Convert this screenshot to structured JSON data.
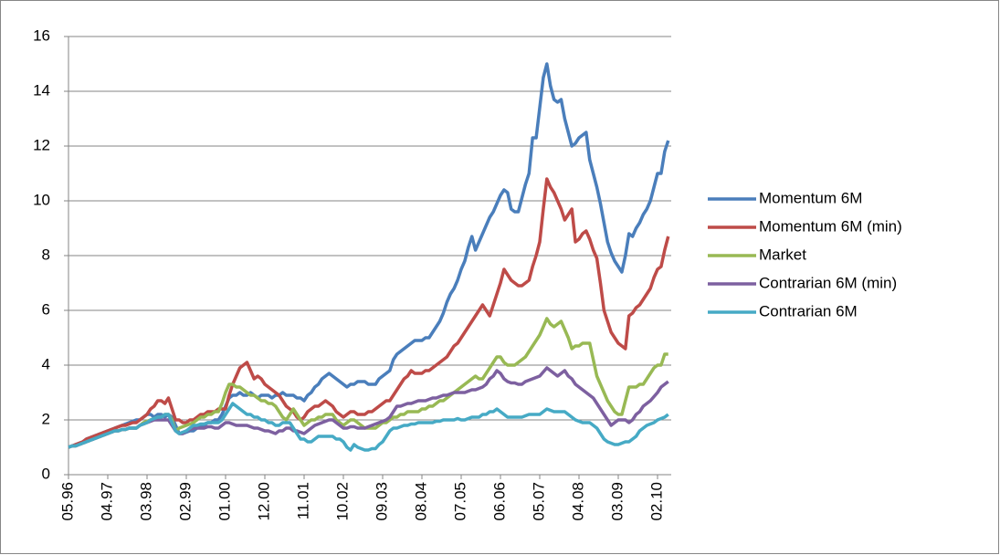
{
  "chart_data": {
    "type": "line",
    "categories": [
      "05.96",
      null,
      null,
      null,
      null,
      null,
      null,
      null,
      null,
      null,
      null,
      "04.97",
      null,
      null,
      null,
      null,
      null,
      null,
      null,
      null,
      null,
      null,
      "03.98",
      null,
      null,
      null,
      null,
      null,
      null,
      null,
      null,
      null,
      null,
      "02.99",
      null,
      null,
      null,
      null,
      null,
      null,
      null,
      null,
      null,
      null,
      "01.00",
      null,
      null,
      null,
      null,
      null,
      null,
      null,
      null,
      null,
      null,
      "12.00",
      null,
      null,
      null,
      null,
      null,
      null,
      null,
      null,
      null,
      null,
      "11.01",
      null,
      null,
      null,
      null,
      null,
      null,
      null,
      null,
      null,
      null,
      "10.02",
      null,
      null,
      null,
      null,
      null,
      null,
      null,
      null,
      null,
      null,
      "09.03",
      null,
      null,
      null,
      null,
      null,
      null,
      null,
      null,
      null,
      null,
      "08.04",
      null,
      null,
      null,
      null,
      null,
      null,
      null,
      null,
      null,
      null,
      "07.05",
      null,
      null,
      null,
      null,
      null,
      null,
      null,
      null,
      null,
      null,
      "06.06",
      null,
      null,
      null,
      null,
      null,
      null,
      null,
      null,
      null,
      null,
      "05.07",
      null,
      null,
      null,
      null,
      null,
      null,
      null,
      null,
      null,
      null,
      "04.08",
      null,
      null,
      null,
      null,
      null,
      null,
      null,
      null,
      null,
      null,
      "03.09",
      null,
      null,
      null,
      null,
      null,
      null,
      null,
      null,
      null,
      null,
      "02.10",
      null,
      null,
      null
    ],
    "series": [
      {
        "name": "Momentum 6M",
        "color": "#4a7ebb",
        "values": [
          1.0,
          1.05,
          1.1,
          1.15,
          1.2,
          1.3,
          1.35,
          1.4,
          1.45,
          1.5,
          1.55,
          1.6,
          1.65,
          1.7,
          1.75,
          1.8,
          1.85,
          1.9,
          1.95,
          2.0,
          2.0,
          2.1,
          2.2,
          2.2,
          2.1,
          2.2,
          2.2,
          2.1,
          2.2,
          2.1,
          1.8,
          1.5,
          1.5,
          1.55,
          1.6,
          1.6,
          1.7,
          1.8,
          1.8,
          1.9,
          1.9,
          2.0,
          2.0,
          2.2,
          2.5,
          2.8,
          2.9,
          2.9,
          3.0,
          2.9,
          2.9,
          3.0,
          2.9,
          2.8,
          2.9,
          2.9,
          2.9,
          2.8,
          2.9,
          2.9,
          3.0,
          2.9,
          2.9,
          2.9,
          2.8,
          2.8,
          2.7,
          2.9,
          3.0,
          3.2,
          3.3,
          3.5,
          3.6,
          3.7,
          3.6,
          3.5,
          3.4,
          3.3,
          3.2,
          3.3,
          3.3,
          3.4,
          3.4,
          3.4,
          3.3,
          3.3,
          3.3,
          3.5,
          3.6,
          3.7,
          3.8,
          4.2,
          4.4,
          4.5,
          4.6,
          4.7,
          4.8,
          4.9,
          4.9,
          4.9,
          5.0,
          5.0,
          5.2,
          5.4,
          5.6,
          5.9,
          6.3,
          6.6,
          6.8,
          7.1,
          7.5,
          7.8,
          8.3,
          8.7,
          8.2,
          8.5,
          8.8,
          9.1,
          9.4,
          9.6,
          9.9,
          10.2,
          10.4,
          10.3,
          9.7,
          9.6,
          9.6,
          10.1,
          10.6,
          11.0,
          12.3,
          12.3,
          13.4,
          14.5,
          15.0,
          14.2,
          13.7,
          13.6,
          13.7,
          13.0,
          12.5,
          12.0,
          12.1,
          12.3,
          12.4,
          12.5,
          11.5,
          11.0,
          10.5,
          9.9,
          9.2,
          8.5,
          8.1,
          7.8,
          7.6,
          7.4,
          8.0,
          8.8,
          8.7,
          9.0,
          9.2,
          9.5,
          9.7,
          10.0,
          10.5,
          11.0,
          11.0,
          11.8,
          12.2
        ]
      },
      {
        "name": "Momentum 6M (min)",
        "color": "#be4b48",
        "values": [
          1.0,
          1.05,
          1.1,
          1.15,
          1.2,
          1.3,
          1.35,
          1.4,
          1.45,
          1.5,
          1.55,
          1.6,
          1.65,
          1.7,
          1.75,
          1.8,
          1.8,
          1.85,
          1.9,
          1.9,
          2.0,
          2.1,
          2.2,
          2.4,
          2.5,
          2.7,
          2.7,
          2.6,
          2.8,
          2.4,
          2.0,
          2.0,
          1.9,
          1.9,
          2.0,
          2.0,
          2.1,
          2.2,
          2.2,
          2.3,
          2.3,
          2.3,
          2.4,
          2.4,
          2.4,
          2.9,
          3.3,
          3.6,
          3.9,
          4.0,
          4.1,
          3.8,
          3.5,
          3.6,
          3.5,
          3.3,
          3.2,
          3.1,
          3.0,
          2.9,
          2.7,
          2.5,
          2.4,
          2.3,
          2.1,
          2.0,
          2.1,
          2.3,
          2.4,
          2.5,
          2.5,
          2.6,
          2.7,
          2.6,
          2.5,
          2.3,
          2.2,
          2.1,
          2.2,
          2.3,
          2.3,
          2.2,
          2.2,
          2.2,
          2.3,
          2.3,
          2.4,
          2.5,
          2.6,
          2.7,
          2.7,
          2.9,
          3.1,
          3.3,
          3.5,
          3.6,
          3.8,
          3.7,
          3.7,
          3.7,
          3.8,
          3.8,
          3.9,
          4.0,
          4.1,
          4.2,
          4.3,
          4.5,
          4.7,
          4.8,
          5.0,
          5.2,
          5.4,
          5.6,
          5.8,
          6.0,
          6.2,
          6.0,
          5.8,
          6.2,
          6.6,
          7.0,
          7.5,
          7.3,
          7.1,
          7.0,
          6.9,
          6.9,
          7.0,
          7.1,
          7.6,
          8.0,
          8.5,
          9.7,
          10.8,
          10.5,
          10.3,
          10.0,
          9.7,
          9.3,
          9.5,
          9.7,
          8.5,
          8.6,
          8.8,
          8.9,
          8.6,
          8.2,
          7.9,
          7.0,
          6.0,
          5.6,
          5.2,
          5.0,
          4.8,
          4.7,
          4.6,
          5.8,
          5.9,
          6.1,
          6.2,
          6.4,
          6.6,
          6.8,
          7.2,
          7.5,
          7.6,
          8.2,
          8.7
        ]
      },
      {
        "name": "Market",
        "color": "#98b954",
        "values": [
          1.0,
          1.05,
          1.05,
          1.1,
          1.15,
          1.2,
          1.25,
          1.3,
          1.35,
          1.4,
          1.45,
          1.5,
          1.55,
          1.6,
          1.6,
          1.65,
          1.65,
          1.7,
          1.7,
          1.7,
          1.8,
          1.9,
          1.95,
          2.0,
          2.05,
          2.1,
          2.1,
          2.2,
          2.2,
          2.0,
          1.6,
          1.7,
          1.75,
          1.8,
          1.85,
          1.9,
          2.0,
          2.1,
          2.1,
          2.2,
          2.2,
          2.3,
          2.3,
          2.6,
          3.0,
          3.3,
          3.3,
          3.2,
          3.2,
          3.1,
          3.0,
          2.9,
          2.9,
          2.8,
          2.7,
          2.7,
          2.6,
          2.6,
          2.5,
          2.3,
          2.1,
          2.0,
          2.2,
          2.4,
          2.2,
          2.0,
          1.8,
          1.9,
          2.0,
          2.0,
          2.1,
          2.1,
          2.2,
          2.2,
          2.2,
          2.0,
          1.9,
          1.8,
          1.9,
          2.0,
          2.0,
          1.9,
          1.8,
          1.7,
          1.7,
          1.7,
          1.7,
          1.8,
          1.9,
          1.9,
          2.0,
          2.1,
          2.1,
          2.2,
          2.2,
          2.3,
          2.3,
          2.3,
          2.3,
          2.4,
          2.4,
          2.5,
          2.5,
          2.6,
          2.7,
          2.7,
          2.8,
          2.9,
          3.0,
          3.1,
          3.2,
          3.3,
          3.4,
          3.5,
          3.6,
          3.5,
          3.5,
          3.7,
          3.9,
          4.1,
          4.3,
          4.3,
          4.1,
          4.0,
          4.0,
          4.0,
          4.1,
          4.2,
          4.3,
          4.5,
          4.7,
          4.9,
          5.1,
          5.4,
          5.7,
          5.5,
          5.4,
          5.5,
          5.6,
          5.3,
          5.0,
          4.6,
          4.7,
          4.7,
          4.8,
          4.8,
          4.8,
          4.2,
          3.6,
          3.3,
          3.0,
          2.7,
          2.5,
          2.3,
          2.2,
          2.2,
          2.7,
          3.2,
          3.2,
          3.2,
          3.3,
          3.3,
          3.5,
          3.7,
          3.9,
          4.0,
          4.0,
          4.4,
          4.4
        ]
      },
      {
        "name": "Contrarian 6M (min)",
        "color": "#7d60a0",
        "values": [
          1.0,
          1.05,
          1.05,
          1.1,
          1.15,
          1.2,
          1.25,
          1.3,
          1.35,
          1.4,
          1.45,
          1.5,
          1.55,
          1.6,
          1.6,
          1.65,
          1.65,
          1.7,
          1.7,
          1.7,
          1.8,
          1.85,
          1.9,
          1.95,
          2.0,
          2.0,
          2.0,
          2.0,
          2.0,
          1.8,
          1.6,
          1.5,
          1.5,
          1.6,
          1.65,
          1.7,
          1.7,
          1.7,
          1.7,
          1.75,
          1.75,
          1.7,
          1.7,
          1.8,
          1.9,
          1.9,
          1.85,
          1.8,
          1.8,
          1.8,
          1.8,
          1.75,
          1.7,
          1.7,
          1.65,
          1.6,
          1.6,
          1.55,
          1.5,
          1.6,
          1.6,
          1.7,
          1.7,
          1.6,
          1.6,
          1.55,
          1.5,
          1.6,
          1.7,
          1.8,
          1.85,
          1.9,
          1.95,
          2.0,
          2.0,
          1.9,
          1.8,
          1.7,
          1.7,
          1.75,
          1.75,
          1.7,
          1.7,
          1.7,
          1.75,
          1.8,
          1.85,
          1.9,
          1.95,
          2.0,
          2.1,
          2.3,
          2.5,
          2.5,
          2.55,
          2.6,
          2.6,
          2.65,
          2.7,
          2.7,
          2.7,
          2.75,
          2.8,
          2.8,
          2.85,
          2.9,
          2.9,
          2.95,
          3.0,
          3.0,
          3.0,
          3.0,
          3.05,
          3.1,
          3.1,
          3.15,
          3.2,
          3.3,
          3.5,
          3.6,
          3.8,
          3.7,
          3.5,
          3.4,
          3.35,
          3.35,
          3.3,
          3.3,
          3.4,
          3.45,
          3.5,
          3.55,
          3.6,
          3.75,
          3.9,
          3.8,
          3.7,
          3.6,
          3.7,
          3.8,
          3.6,
          3.5,
          3.3,
          3.2,
          3.1,
          3.0,
          2.9,
          2.8,
          2.6,
          2.4,
          2.2,
          2.0,
          1.8,
          1.9,
          2.0,
          2.0,
          2.0,
          1.9,
          2.0,
          2.2,
          2.3,
          2.5,
          2.6,
          2.7,
          2.85,
          3.0,
          3.2,
          3.3,
          3.4
        ]
      },
      {
        "name": "Contrarian 6M",
        "color": "#46aac5",
        "values": [
          1.0,
          1.05,
          1.05,
          1.1,
          1.15,
          1.2,
          1.25,
          1.3,
          1.35,
          1.4,
          1.45,
          1.5,
          1.55,
          1.6,
          1.6,
          1.65,
          1.65,
          1.7,
          1.7,
          1.7,
          1.8,
          1.85,
          1.9,
          2.0,
          2.05,
          2.1,
          2.1,
          2.2,
          2.2,
          1.9,
          1.6,
          1.5,
          1.55,
          1.6,
          1.7,
          1.8,
          1.8,
          1.85,
          1.85,
          1.9,
          1.9,
          1.9,
          1.9,
          2.0,
          2.2,
          2.4,
          2.6,
          2.5,
          2.4,
          2.3,
          2.2,
          2.2,
          2.1,
          2.1,
          2.0,
          2.0,
          1.9,
          1.9,
          1.8,
          1.8,
          1.9,
          1.9,
          1.9,
          1.7,
          1.5,
          1.3,
          1.3,
          1.2,
          1.2,
          1.3,
          1.4,
          1.4,
          1.4,
          1.4,
          1.4,
          1.3,
          1.3,
          1.2,
          1.0,
          0.9,
          1.1,
          1.0,
          0.95,
          0.9,
          0.9,
          0.95,
          0.95,
          1.1,
          1.2,
          1.4,
          1.6,
          1.7,
          1.7,
          1.75,
          1.8,
          1.8,
          1.85,
          1.85,
          1.9,
          1.9,
          1.9,
          1.9,
          1.9,
          1.95,
          1.95,
          2.0,
          2.0,
          2.0,
          2.0,
          2.05,
          2.0,
          2.0,
          2.05,
          2.1,
          2.1,
          2.1,
          2.2,
          2.2,
          2.3,
          2.3,
          2.4,
          2.3,
          2.2,
          2.1,
          2.1,
          2.1,
          2.1,
          2.1,
          2.15,
          2.2,
          2.2,
          2.2,
          2.2,
          2.3,
          2.4,
          2.35,
          2.3,
          2.3,
          2.3,
          2.3,
          2.2,
          2.1,
          2.0,
          1.95,
          1.9,
          1.9,
          1.9,
          1.8,
          1.7,
          1.5,
          1.3,
          1.2,
          1.15,
          1.1,
          1.1,
          1.15,
          1.2,
          1.2,
          1.3,
          1.4,
          1.6,
          1.7,
          1.8,
          1.85,
          1.9,
          2.0,
          2.05,
          2.1,
          2.2
        ]
      }
    ],
    "ylim": [
      0,
      16
    ],
    "yticks": [
      0,
      2,
      4,
      6,
      8,
      10,
      12,
      14,
      16
    ],
    "grid": true,
    "legend": "right"
  }
}
